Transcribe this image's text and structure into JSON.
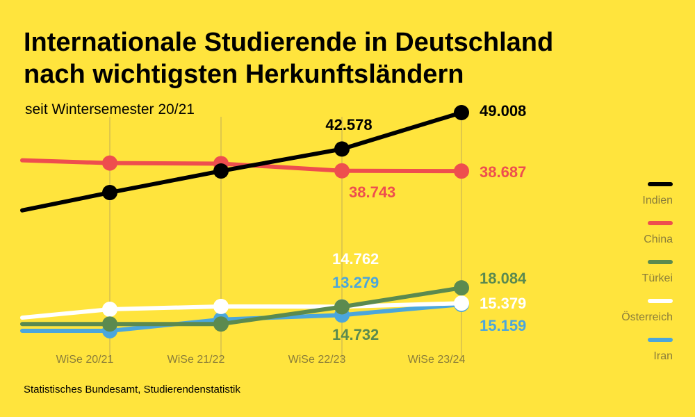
{
  "title_line1": "Internationale Studierende in Deutschland",
  "title_line2": "nach wichtigsten Herkunftsländern",
  "subtitle": "seit Wintersemester 20/21",
  "source": "Statistisches Bundesamt, Studierendenstatistik",
  "colors": {
    "background": "#ffe43d",
    "tick_label": "#8a7d3a",
    "grid": "#e0c84a"
  },
  "chart_data": {
    "type": "line",
    "categories": [
      "WiSe 20/21",
      "WiSe 21/22",
      "WiSe 22/23",
      "WiSe 23/24"
    ],
    "legend_placement": "right",
    "series": [
      {
        "name": "Indien",
        "color": "#000000",
        "values": [
          34900,
          38700,
          42578,
          49008
        ],
        "labels": [
          null,
          null,
          "42.578",
          "49.008"
        ]
      },
      {
        "name": "China",
        "color": "#ee4e4e",
        "values": [
          40100,
          40000,
          38743,
          38687
        ],
        "labels": [
          null,
          null,
          "38.743",
          "38.687"
        ]
      },
      {
        "name": "Türkei",
        "color": "#5b8a4f",
        "values": [
          11700,
          11700,
          14732,
          18084
        ],
        "labels": [
          null,
          null,
          "14.732",
          "18.084"
        ]
      },
      {
        "name": "Österreich",
        "color": "#ffffff",
        "values": [
          14300,
          14800,
          14762,
          15379
        ],
        "labels": [
          null,
          null,
          "14.762",
          "15.379"
        ]
      },
      {
        "name": "Iran",
        "color": "#4ba6dc",
        "values": [
          10500,
          12500,
          13279,
          15159
        ],
        "labels": [
          null,
          null,
          "13.279",
          "15.159"
        ]
      }
    ]
  }
}
